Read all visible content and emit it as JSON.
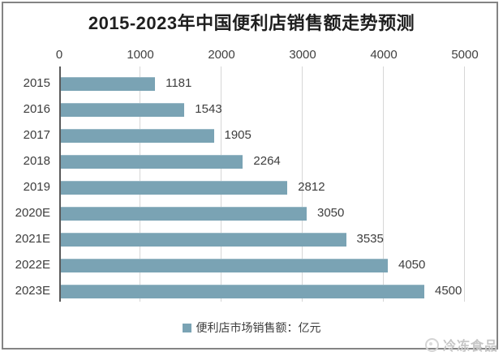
{
  "chart_data": {
    "type": "bar",
    "orientation": "horizontal",
    "title": "2015-2023年中国便利店销售额走势预测",
    "categories": [
      "2015",
      "2016",
      "2017",
      "2018",
      "2019",
      "2020E",
      "2021E",
      "2022E",
      "2023E"
    ],
    "values": [
      1181,
      1543,
      1905,
      2264,
      2812,
      3050,
      3535,
      4050,
      4500
    ],
    "series": [
      {
        "name": "便利店市场销售额：亿元",
        "values": [
          1181,
          1543,
          1905,
          2264,
          2812,
          3050,
          3535,
          4050,
          4500
        ]
      }
    ],
    "data_labels": [
      "1181",
      "1543",
      "1905",
      "2264",
      "2812",
      "3050",
      "3535",
      "4050",
      "4500"
    ],
    "value_axis": {
      "position": "top",
      "min": 0,
      "max": 5000,
      "tick_interval": 1000,
      "tick_labels": [
        "0",
        "1000",
        "2000",
        "3000",
        "4000",
        "5000"
      ]
    },
    "grid": true,
    "legend": {
      "position": "bottom",
      "label": "便利店市场销售额：亿元",
      "swatch_color": "#7aa3b4"
    },
    "colors": {
      "bar": "#7aa3b4",
      "gridline": "#d6d6d6",
      "axis_line": "#5a5a5a",
      "text": "#3d3d3d",
      "title": "#1f1f1f",
      "frame_border": "#848484",
      "watermark": "#c6c6c6"
    }
  },
  "watermark": {
    "text": "冷冻食品"
  }
}
